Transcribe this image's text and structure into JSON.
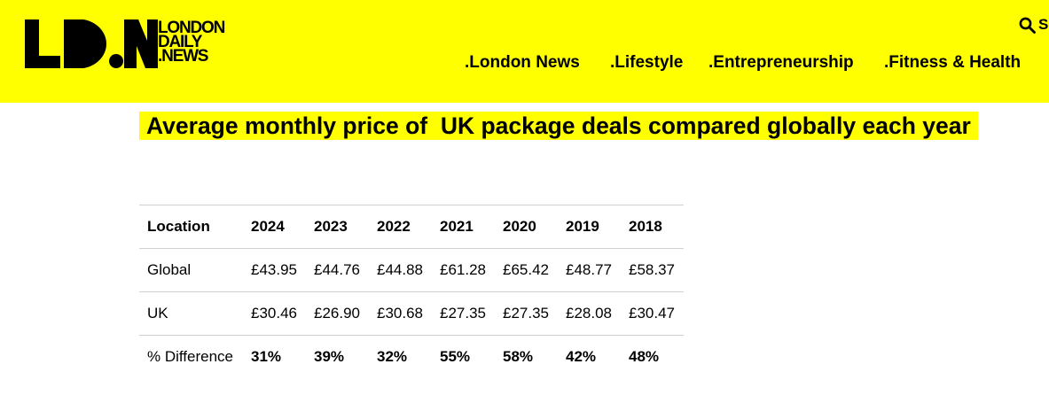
{
  "header": {
    "logo": {
      "letters": "LDN",
      "lines": [
        "LONDON",
        "DAILY",
        ".NEWS"
      ]
    },
    "search_label": "S",
    "nav": [
      ".London News",
      ".Lifestyle",
      ".Entrepreneurship",
      ".Fitness & Health"
    ]
  },
  "article": {
    "title": "Average monthly price of  UK package deals compared globally each year"
  },
  "table": {
    "headers": [
      "Location",
      "2024",
      "2023",
      "2022",
      "2021",
      "2020",
      "2019",
      "2018"
    ],
    "rows": [
      [
        "Global",
        "£43.95",
        "£44.76",
        "£44.88",
        "£61.28",
        "£65.42",
        "£48.77",
        "£58.37"
      ],
      [
        "UK",
        "£30.46",
        "£26.90",
        "£30.68",
        "£27.35",
        "£27.35",
        "£28.08",
        "£30.47"
      ],
      [
        "% Difference",
        "31%",
        "39%",
        "32%",
        "55%",
        "58%",
        "42%",
        "48%"
      ]
    ]
  },
  "colors": {
    "brand_yellow": "#ffff00",
    "text": "#000000",
    "rule": "#d0d0d0"
  }
}
